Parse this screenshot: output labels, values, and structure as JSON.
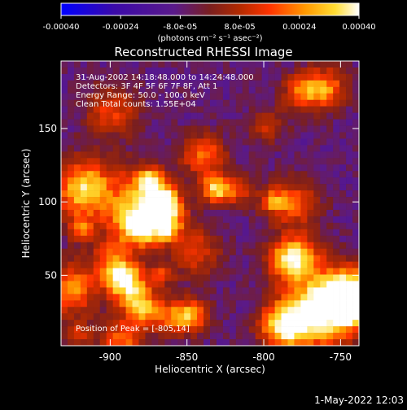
{
  "colorbar": {
    "tick_labels": [
      "-0.00040",
      "-0.00024",
      "-8.0e-05",
      "8.0e-05",
      "0.00024",
      "0.00040"
    ],
    "tick_values": [
      -0.0004,
      -0.00024,
      -8e-05,
      8e-05,
      0.00024,
      0.0004
    ],
    "range": [
      -0.0004,
      0.0004
    ],
    "units_label": "(photons cm⁻² s⁻¹ asec⁻²)",
    "colors": [
      "#0000ff",
      "#3b0aa8",
      "#5a1a8a",
      "#7a1f1f",
      "#b32a00",
      "#ff3300",
      "#ff9900",
      "#ffdd33",
      "#ffffff"
    ]
  },
  "title": "Reconstructed RHESSI Image",
  "annotation": {
    "line1": "31-Aug-2002 14:18:48.000 to 14:24:48.000",
    "line2": "Detectors: 3F 4F 5F 6F 7F 8F, Att 1",
    "line3": "Energy Range: 50.0 - 100.0 keV",
    "line4": "Clean    Total counts: 1.55E+04"
  },
  "peak_label": "Position of Peak = [-805,14]",
  "axes": {
    "x_label": "Heliocentric X (arcsec)",
    "y_label": "Heliocentric Y (arcsec)",
    "x_ticks": [
      "-900",
      "-850",
      "-800",
      "-750"
    ],
    "x_tick_values": [
      -900,
      -850,
      -800,
      -750
    ],
    "y_ticks": [
      "50",
      "100",
      "150"
    ],
    "y_tick_values": [
      50,
      100,
      150
    ],
    "x_range": [
      -932,
      -738
    ],
    "y_range": [
      2,
      196
    ]
  },
  "footer_timestamp": "1-May-2022 12:03"
}
